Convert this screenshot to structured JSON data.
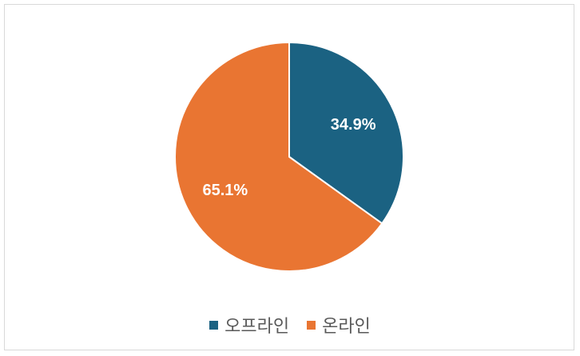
{
  "chart_data": {
    "type": "pie",
    "categories": [
      "오프라인",
      "온라인"
    ],
    "values": [
      34.9,
      65.1
    ],
    "labels": [
      "34.9%",
      "65.1%"
    ],
    "colors": [
      "#1b6282",
      "#e97532"
    ],
    "start_angle": "top",
    "direction": "clockwise",
    "legend": "bottom"
  }
}
